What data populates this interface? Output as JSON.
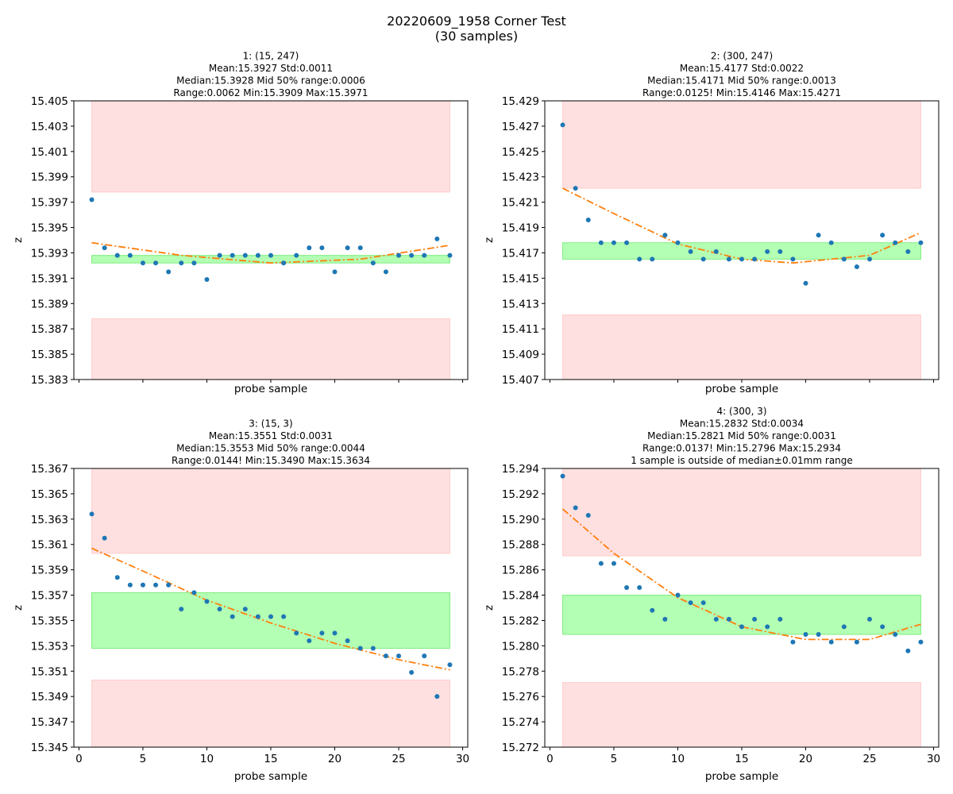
{
  "figure": {
    "title_line1": "20220609_1958 Corner Test",
    "title_line2": "(30 samples)"
  },
  "chart_data": [
    {
      "type": "scatter",
      "title_lines": [
        "1: (15, 247)",
        "Mean:15.3927  Std:0.0011",
        "Median:15.3928  Mid 50% range:0.0006",
        "Range:0.0062  Min:15.3909  Max:15.3971"
      ],
      "xlabel": "probe sample",
      "ylabel": "z",
      "xlim": [
        -0.4,
        30.4
      ],
      "ylim": [
        15.383,
        15.405
      ],
      "yticks": [
        "15.383",
        "15.385",
        "15.387",
        "15.389",
        "15.391",
        "15.393",
        "15.395",
        "15.397",
        "15.399",
        "15.401",
        "15.403",
        "15.405"
      ],
      "xticks": [
        "0",
        "5",
        "10",
        "15",
        "20",
        "25",
        "30"
      ],
      "show_xtick_labels": false,
      "bands": [
        {
          "kind": "red",
          "x": [
            1,
            29
          ],
          "y": [
            15.3978,
            15.405
          ]
        },
        {
          "kind": "red",
          "x": [
            1,
            29
          ],
          "y": [
            15.383,
            15.3878
          ]
        },
        {
          "kind": "green",
          "x": [
            1,
            29
          ],
          "y": [
            15.3922,
            15.3928
          ]
        }
      ],
      "fit": [
        [
          1,
          15.3938
        ],
        [
          8,
          15.3928
        ],
        [
          15,
          15.3922
        ],
        [
          22,
          15.3925
        ],
        [
          29,
          15.3936
        ]
      ],
      "points": {
        "x": [
          1,
          2,
          3,
          4,
          5,
          6,
          7,
          8,
          9,
          10,
          11,
          12,
          13,
          14,
          15,
          16,
          17,
          18,
          19,
          20,
          21,
          22,
          23,
          24,
          25,
          26,
          27,
          28,
          29
        ],
        "y": [
          15.3972,
          15.3934,
          15.3928,
          15.3928,
          15.3922,
          15.3922,
          15.3915,
          15.3922,
          15.3922,
          15.3909,
          15.3928,
          15.3928,
          15.3928,
          15.3928,
          15.3928,
          15.3922,
          15.3928,
          15.3934,
          15.3934,
          15.3915,
          15.3934,
          15.3934,
          15.3922,
          15.3915,
          15.3928,
          15.3928,
          15.3928,
          15.3941,
          15.3928
        ]
      }
    },
    {
      "type": "scatter",
      "title_lines": [
        "2: (300, 247)",
        "Mean:15.4177  Std:0.0022",
        "Median:15.4171  Mid 50% range:0.0013",
        "Range:0.0125!  Min:15.4146  Max:15.4271"
      ],
      "xlabel": "probe sample",
      "ylabel": "z",
      "xlim": [
        -0.4,
        30.4
      ],
      "ylim": [
        15.407,
        15.429
      ],
      "yticks": [
        "15.407",
        "15.409",
        "15.411",
        "15.413",
        "15.415",
        "15.417",
        "15.419",
        "15.421",
        "15.423",
        "15.425",
        "15.427",
        "15.429"
      ],
      "xticks": [
        "0",
        "5",
        "10",
        "15",
        "20",
        "25",
        "30"
      ],
      "show_xtick_labels": false,
      "bands": [
        {
          "kind": "red",
          "x": [
            1,
            29
          ],
          "y": [
            15.4221,
            15.429
          ]
        },
        {
          "kind": "red",
          "x": [
            1,
            29
          ],
          "y": [
            15.407,
            15.4121
          ]
        },
        {
          "kind": "green",
          "x": [
            1,
            29
          ],
          "y": [
            15.4165,
            15.4178
          ]
        }
      ],
      "fit": [
        [
          1,
          15.4221
        ],
        [
          5,
          15.4201
        ],
        [
          10,
          15.4177
        ],
        [
          15,
          15.4165
        ],
        [
          19,
          15.4162
        ],
        [
          25,
          15.4168
        ],
        [
          29,
          15.4186
        ]
      ],
      "points": {
        "x": [
          1,
          2,
          3,
          4,
          5,
          6,
          7,
          8,
          9,
          10,
          11,
          12,
          13,
          14,
          15,
          16,
          17,
          18,
          19,
          20,
          21,
          22,
          23,
          24,
          25,
          26,
          27,
          28,
          29
        ],
        "y": [
          15.4271,
          15.4221,
          15.4196,
          15.4178,
          15.4178,
          15.4178,
          15.4165,
          15.4165,
          15.4184,
          15.4178,
          15.4171,
          15.4165,
          15.4171,
          15.4165,
          15.4165,
          15.4165,
          15.4171,
          15.4171,
          15.4165,
          15.4146,
          15.4184,
          15.4178,
          15.4165,
          15.4159,
          15.4165,
          15.4184,
          15.4178,
          15.4171,
          15.4178
        ]
      }
    },
    {
      "type": "scatter",
      "title_lines": [
        "3: (15, 3)",
        "Mean:15.3551  Std:0.0031",
        "Median:15.3553  Mid 50% range:0.0044",
        "Range:0.0144!  Min:15.3490  Max:15.3634"
      ],
      "xlabel": "probe sample",
      "ylabel": "z",
      "xlim": [
        -0.4,
        30.4
      ],
      "ylim": [
        15.345,
        15.367
      ],
      "yticks": [
        "15.345",
        "15.347",
        "15.349",
        "15.351",
        "15.353",
        "15.355",
        "15.357",
        "15.359",
        "15.361",
        "15.363",
        "15.365",
        "15.367"
      ],
      "xticks": [
        "0",
        "5",
        "10",
        "15",
        "20",
        "25",
        "30"
      ],
      "show_xtick_labels": true,
      "bands": [
        {
          "kind": "red",
          "x": [
            1,
            29
          ],
          "y": [
            15.3603,
            15.367
          ]
        },
        {
          "kind": "red",
          "x": [
            1,
            29
          ],
          "y": [
            15.345,
            15.3503
          ]
        },
        {
          "kind": "green",
          "x": [
            1,
            29
          ],
          "y": [
            15.3528,
            15.3572
          ]
        }
      ],
      "fit": [
        [
          1,
          15.3607
        ],
        [
          5,
          15.3589
        ],
        [
          10,
          15.3566
        ],
        [
          15,
          15.3548
        ],
        [
          20,
          15.3532
        ],
        [
          25,
          15.3519
        ],
        [
          29,
          15.3511
        ]
      ],
      "points": {
        "x": [
          1,
          2,
          3,
          4,
          5,
          6,
          7,
          8,
          9,
          10,
          11,
          12,
          13,
          14,
          15,
          16,
          17,
          18,
          19,
          20,
          21,
          22,
          23,
          24,
          25,
          26,
          27,
          28,
          29
        ],
        "y": [
          15.3634,
          15.3615,
          15.3584,
          15.3578,
          15.3578,
          15.3578,
          15.3578,
          15.3559,
          15.3572,
          15.3565,
          15.3559,
          15.3553,
          15.3559,
          15.3553,
          15.3553,
          15.3553,
          15.354,
          15.3534,
          15.354,
          15.354,
          15.3534,
          15.3528,
          15.3528,
          15.3522,
          15.3522,
          15.3509,
          15.3522,
          15.349,
          15.3515
        ]
      }
    },
    {
      "type": "scatter",
      "title_lines": [
        "4: (300, 3)",
        "Mean:15.2832  Std:0.0034",
        "Median:15.2821  Mid 50% range:0.0031",
        "Range:0.0137!  Min:15.2796  Max:15.2934",
        "1 sample is outside of median±0.01mm range"
      ],
      "xlabel": "probe sample",
      "ylabel": "z",
      "xlim": [
        -0.4,
        30.4
      ],
      "ylim": [
        15.272,
        15.294
      ],
      "yticks": [
        "15.272",
        "15.274",
        "15.276",
        "15.278",
        "15.280",
        "15.282",
        "15.284",
        "15.286",
        "15.288",
        "15.290",
        "15.292",
        "15.294"
      ],
      "xticks": [
        "0",
        "5",
        "10",
        "15",
        "20",
        "25",
        "30"
      ],
      "show_xtick_labels": true,
      "bands": [
        {
          "kind": "red",
          "x": [
            1,
            29
          ],
          "y": [
            15.2871,
            15.294
          ]
        },
        {
          "kind": "red",
          "x": [
            1,
            29
          ],
          "y": [
            15.272,
            15.2771
          ]
        },
        {
          "kind": "green",
          "x": [
            1,
            29
          ],
          "y": [
            15.2809,
            15.284
          ]
        }
      ],
      "fit": [
        [
          1,
          15.2908
        ],
        [
          5,
          15.2873
        ],
        [
          10,
          15.2838
        ],
        [
          15,
          15.2815
        ],
        [
          20,
          15.2805
        ],
        [
          25,
          15.2805
        ],
        [
          29,
          15.2817
        ]
      ],
      "points": {
        "x": [
          1,
          2,
          3,
          4,
          5,
          6,
          7,
          8,
          9,
          10,
          11,
          12,
          13,
          14,
          15,
          16,
          17,
          18,
          19,
          20,
          21,
          22,
          23,
          24,
          25,
          26,
          27,
          28,
          29
        ],
        "y": [
          15.2934,
          15.2909,
          15.2903,
          15.2865,
          15.2865,
          15.2846,
          15.2846,
          15.2828,
          15.2821,
          15.284,
          15.2834,
          15.2834,
          15.2821,
          15.2821,
          15.2815,
          15.2821,
          15.2815,
          15.2821,
          15.2803,
          15.2809,
          15.2809,
          15.2803,
          15.2815,
          15.2803,
          15.2821,
          15.2815,
          15.2809,
          15.2796,
          15.2803
        ]
      }
    }
  ]
}
